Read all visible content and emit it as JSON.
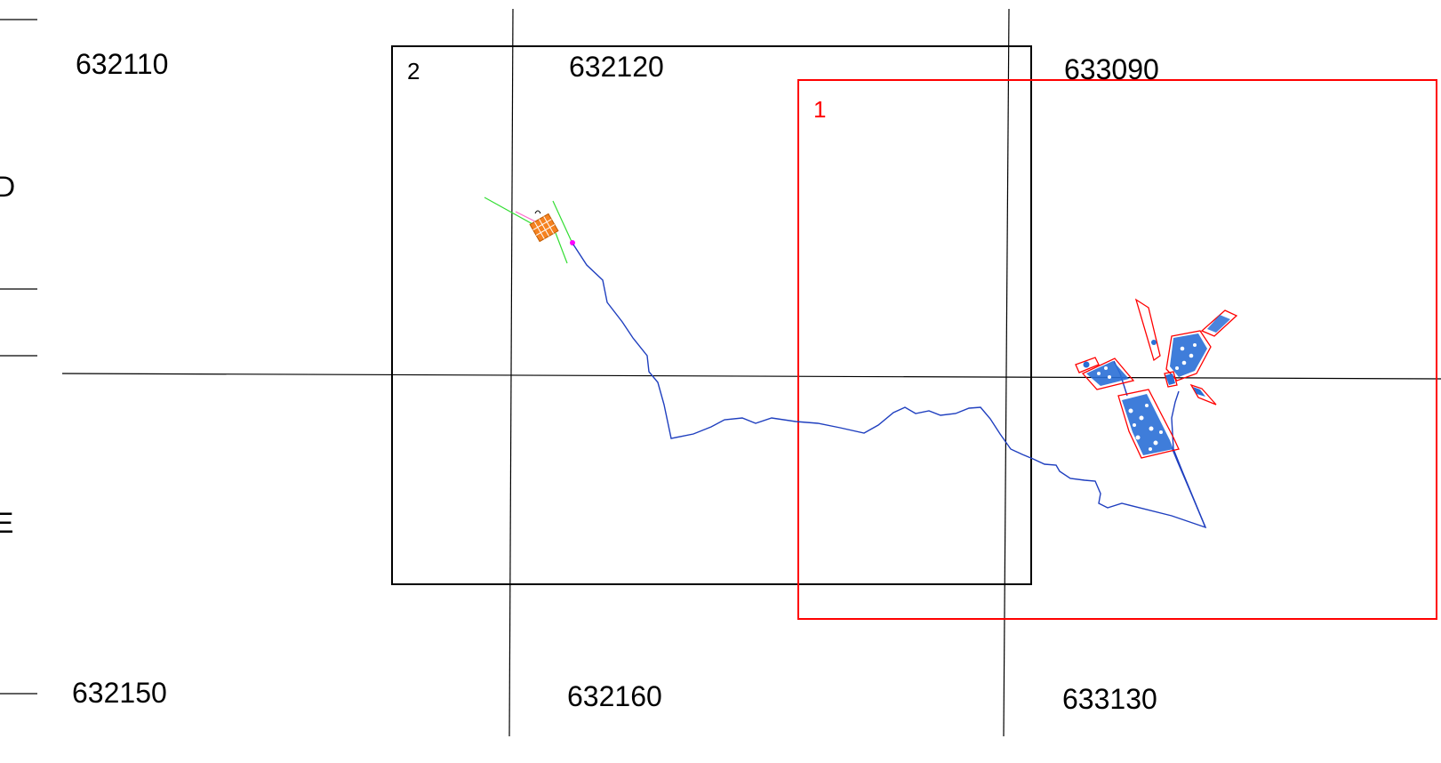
{
  "sheet_labels": {
    "top_left": "632110",
    "top_middle": "632120",
    "top_right": "633090",
    "bottom_left": "632150",
    "bottom_middle": "632160",
    "bottom_right": "633130",
    "side_d": "D",
    "side_e": "E"
  },
  "frames": {
    "frame_2": {
      "number": "2",
      "color": "#000000"
    },
    "frame_1": {
      "number": "1",
      "color": "#ff0000"
    }
  },
  "colors": {
    "route": "#1f3fbf",
    "parcel_fill": "#2a6fd6",
    "parcel_outline": "#ff0000",
    "village_orange": "#f58220",
    "green_line": "#33dd33",
    "pink_line": "#ff66cc",
    "magenta": "#ff00ff",
    "grid": "#000000"
  }
}
